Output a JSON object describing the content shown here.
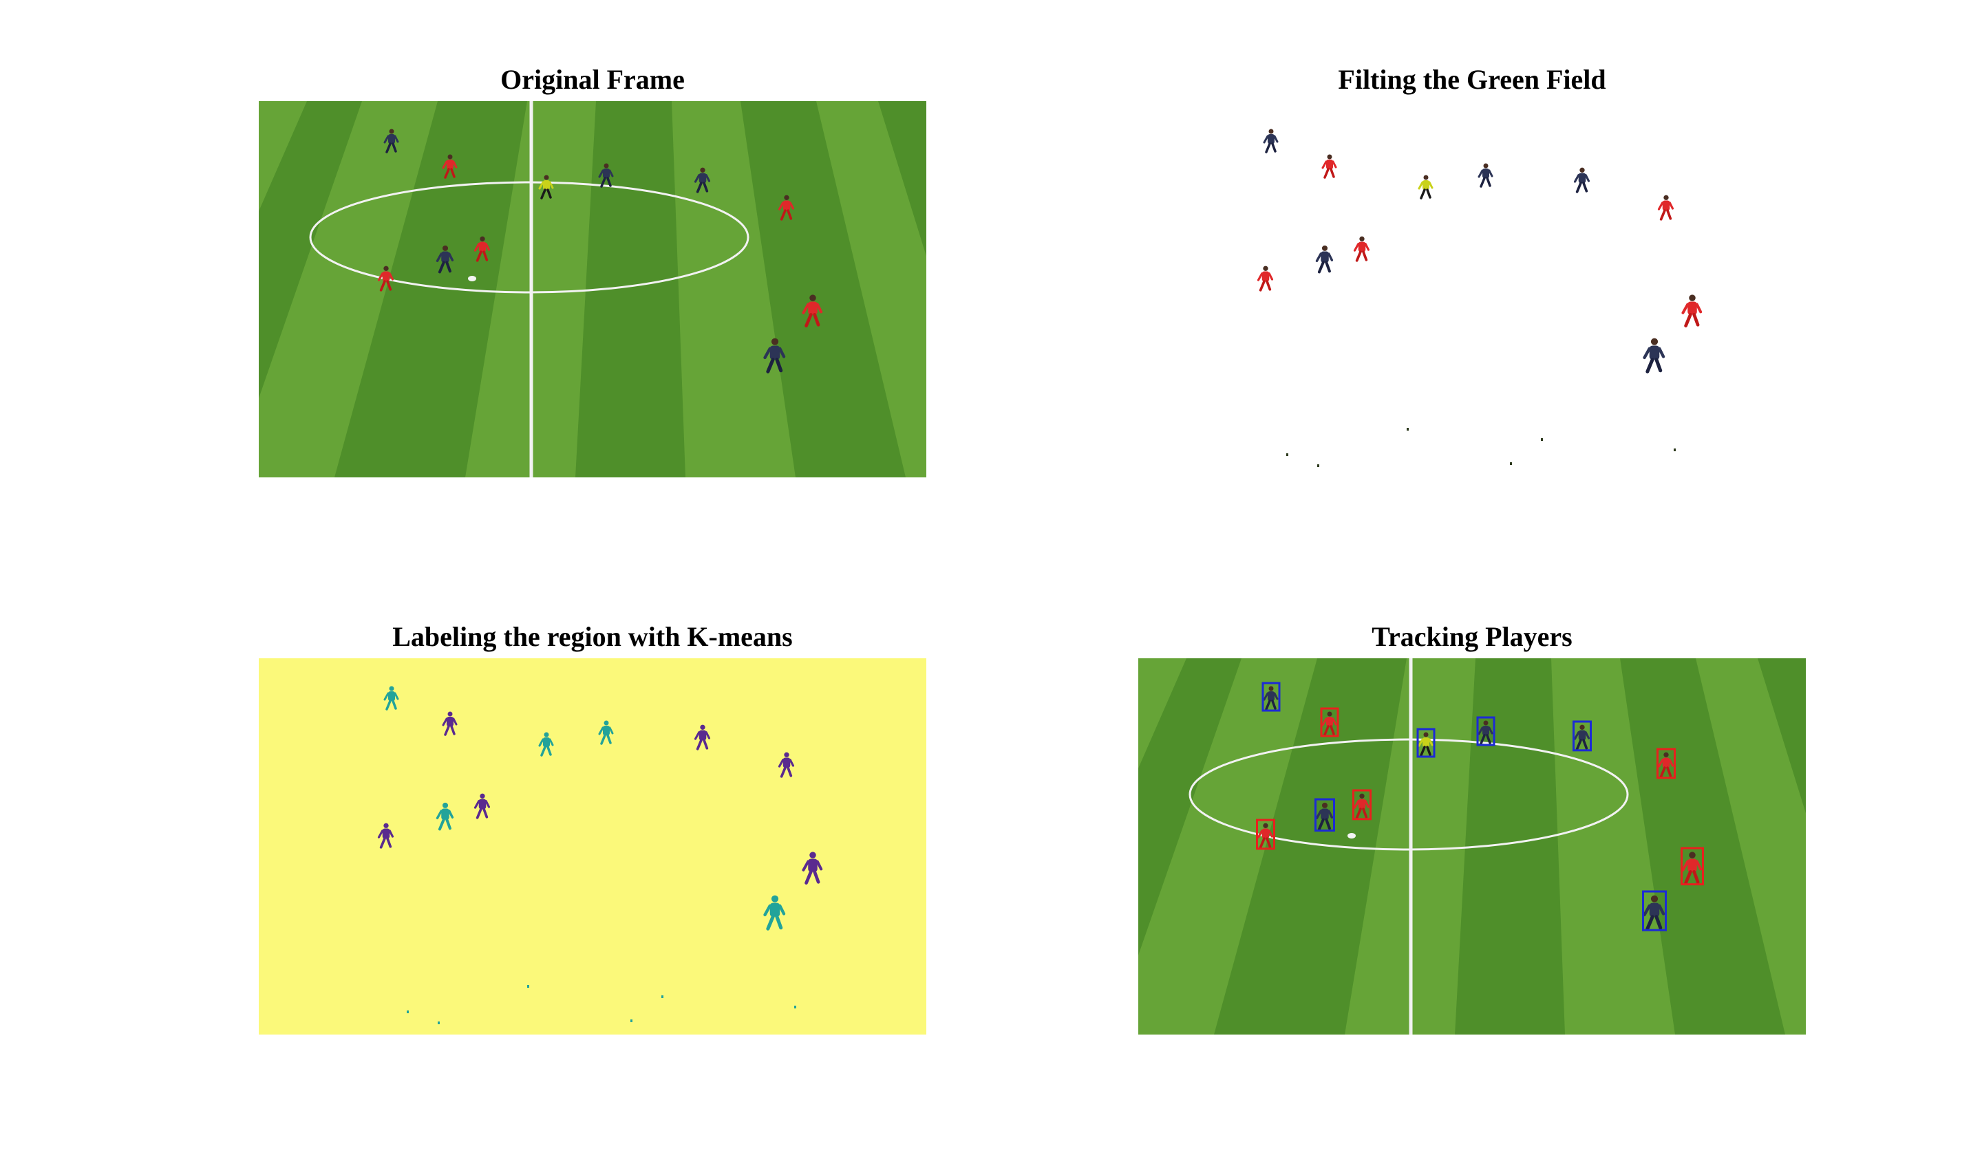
{
  "figure": {
    "panels": [
      {
        "id": "original",
        "title": "Original Frame"
      },
      {
        "id": "filtered",
        "title": "Filting the Green Field"
      },
      {
        "id": "kmeans",
        "title": "Labeling the region with K-means"
      },
      {
        "id": "tracking",
        "title": "Tracking Players"
      }
    ]
  },
  "colors": {
    "field_dark": "#4f8f2a",
    "field_light": "#6aa83a",
    "line": "#f2f2f2",
    "team_red": "#e0282a",
    "team_navy": "#2c3456",
    "referee": "#c9d21a",
    "kmeans_background": "#fbf97a",
    "kmeans_teal": "#22a39a",
    "kmeans_purple": "#5a2a8f",
    "box_red": "#e8201e",
    "box_blue": "#1c2ad6"
  }
}
